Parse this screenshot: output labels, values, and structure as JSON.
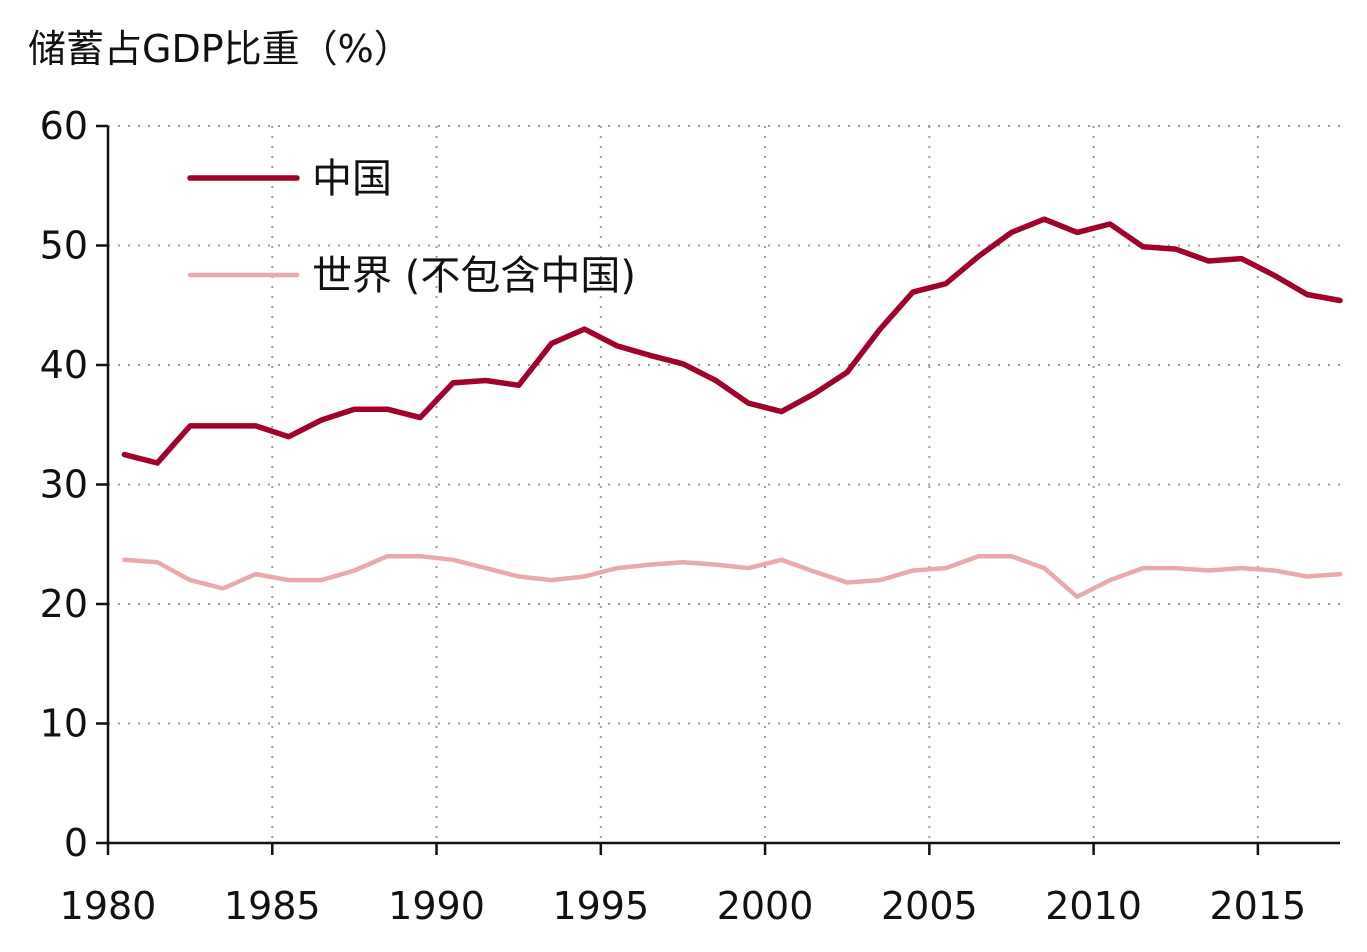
{
  "chart_data": {
    "type": "line",
    "title": "",
    "ylabel": "储蓄占GDP比重（%）",
    "xlabel": "",
    "xlim": [
      1980,
      2017.5
    ],
    "ylim": [
      0,
      60
    ],
    "yticks": [
      "0",
      "10",
      "20",
      "30",
      "40",
      "50",
      "60"
    ],
    "xticks": [
      "1980",
      "1985",
      "1990",
      "1995",
      "2000",
      "2005",
      "2010",
      "2015"
    ],
    "grid": true,
    "legend_position": "top-left",
    "x": [
      1980.5,
      1981.5,
      1982.5,
      1983.5,
      1984.5,
      1985.5,
      1986.5,
      1987.5,
      1988.5,
      1989.5,
      1990.5,
      1991.5,
      1992.5,
      1993.5,
      1994.5,
      1995.5,
      1996.5,
      1997.5,
      1998.5,
      1999.5,
      2000.5,
      2001.5,
      2002.5,
      2003.5,
      2004.5,
      2005.5,
      2006.5,
      2007.5,
      2008.5,
      2009.5,
      2010.5,
      2011.5,
      2012.5,
      2013.5,
      2014.5,
      2015.5,
      2016.5,
      2017.5
    ],
    "series": [
      {
        "name": "中国",
        "color": "#a0002a",
        "values": [
          32.5,
          31.8,
          34.9,
          34.9,
          34.9,
          34.0,
          35.4,
          36.3,
          36.3,
          35.6,
          38.5,
          38.7,
          38.3,
          41.8,
          43.0,
          41.6,
          40.8,
          40.1,
          38.7,
          36.8,
          36.1,
          37.6,
          39.4,
          43.0,
          46.1,
          46.8,
          49.1,
          51.1,
          52.2,
          51.1,
          51.8,
          49.9,
          49.7,
          48.7,
          48.9,
          47.5,
          45.9,
          45.4
        ]
      },
      {
        "name": "世界 (不包含中国)",
        "color": "#e8aaaa",
        "values": [
          23.7,
          23.5,
          22.0,
          21.3,
          22.5,
          22.0,
          22.0,
          22.8,
          24.0,
          24.0,
          23.7,
          23.0,
          22.3,
          22.0,
          22.3,
          23.0,
          23.3,
          23.5,
          23.3,
          23.0,
          23.7,
          22.7,
          21.8,
          22.0,
          22.8,
          23.0,
          24.0,
          24.0,
          23.0,
          20.6,
          22.0,
          23.0,
          23.0,
          22.8,
          23.0,
          22.8,
          22.3,
          22.5
        ]
      }
    ]
  }
}
